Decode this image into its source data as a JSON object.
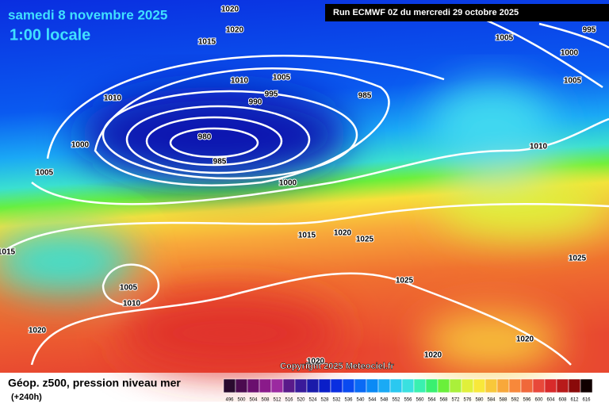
{
  "header": {
    "date": "samedi 8 novembre 2025",
    "time": "1:00 locale",
    "run": "Run ECMWF 0Z du mercredi 29 octobre 2025"
  },
  "copyright": "Copyright 2025 Meteociel.fr",
  "isobar_labels": [
    1020,
    1020,
    1015,
    1005,
    995,
    1000,
    1005,
    1010,
    1005,
    995,
    990,
    985,
    1010,
    980,
    985,
    1000,
    1010,
    1005,
    1000,
    1015,
    1020,
    1025,
    1015,
    1025,
    1025,
    1005,
    1010,
    1020,
    1020,
    1020,
    1020
  ],
  "footer": {
    "title": "Géop. z500, pression niveau mer",
    "lead": "(+240h)"
  },
  "legend": {
    "labels": [
      496,
      500,
      504,
      508,
      512,
      516,
      520,
      524,
      528,
      532,
      536,
      540,
      544,
      548,
      552,
      556,
      560,
      564,
      568,
      572,
      576,
      580,
      584,
      588,
      592,
      596,
      600,
      604,
      608,
      612,
      616
    ],
    "colors": [
      "#2a0a2e",
      "#4b0b4f",
      "#6a0f6e",
      "#8a1a8a",
      "#9b2aa0",
      "#5a1a8a",
      "#3a1a9a",
      "#1a1aaa",
      "#0a1ec8",
      "#0a2ee0",
      "#0a4af0",
      "#0a6af5",
      "#0a8af5",
      "#1aaaf5",
      "#2ac8f0",
      "#3ae0e0",
      "#3af0b0",
      "#3af070",
      "#6af03a",
      "#aaf03a",
      "#e0f03a",
      "#f8e83a",
      "#f8c83a",
      "#f8a83a",
      "#f8883a",
      "#f0683a",
      "#e8483a",
      "#d82a2a",
      "#b81a1a",
      "#8a0a0a",
      "#100000"
    ]
  }
}
